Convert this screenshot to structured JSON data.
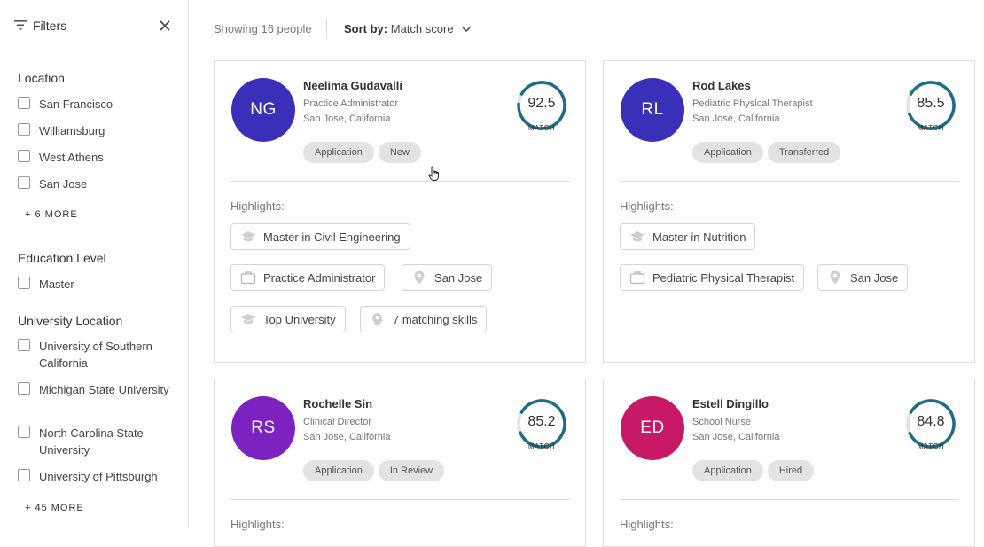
{
  "sidebar": {
    "title": "Filters",
    "location": {
      "title": "Location",
      "options": [
        "San Francisco",
        "Williamsburg",
        "West Athens",
        "San Jose"
      ],
      "more": "+ 6 MORE"
    },
    "education": {
      "title": "Education Level",
      "options": [
        "Master"
      ]
    },
    "university": {
      "title": "University Location",
      "options": [
        "University of Southern California",
        "Michigan State University",
        "North Carolina State University",
        "University of Pittsburgh"
      ],
      "more": "+ 45 MORE"
    }
  },
  "topbar": {
    "showing": "Showing 16 people",
    "sort_label": "Sort by:",
    "sort_value": "Match score"
  },
  "match_label": "MATCH",
  "highlights_label": "Highlights:",
  "colors": {
    "score_ring": "#1f6b84",
    "score_track": "#e2e2e2"
  },
  "cards": [
    {
      "initials": "NG",
      "avatar_color": "#3a2fb8",
      "name": "Neelima Gudavalli",
      "role": "Practice Administrator",
      "location": "San Jose, California",
      "score": 92.5,
      "score_text": "92.5",
      "tags": [
        "Application",
        "New"
      ],
      "highlights": {
        "degree": "Master in Civil Engineering",
        "job": "Practice Administrator",
        "city": "San Jose",
        "university": "Top University",
        "skills": "7 matching skills"
      }
    },
    {
      "initials": "RL",
      "avatar_color": "#3a2fb8",
      "name": "Rod Lakes",
      "role": "Pediatric Physical Therapist",
      "location": "San Jose, California",
      "score": 85.5,
      "score_text": "85.5",
      "tags": [
        "Application",
        "Transferred"
      ],
      "highlights": {
        "degree": "Master in Nutrition",
        "job": "Pediatric Physical Therapist",
        "city": "San Jose"
      }
    },
    {
      "initials": "RS",
      "avatar_color": "#7b22c0",
      "name": "Rochelle Sin",
      "role": "Clinical Director",
      "location": "San Jose, California",
      "score": 85.2,
      "score_text": "85.2",
      "tags": [
        "Application",
        "In Review"
      ]
    },
    {
      "initials": "ED",
      "avatar_color": "#c81968",
      "name": "Estell Dingillo",
      "role": "School Nurse",
      "location": "San Jose, California",
      "score": 84.8,
      "score_text": "84.8",
      "tags": [
        "Application",
        "Hired"
      ]
    }
  ]
}
